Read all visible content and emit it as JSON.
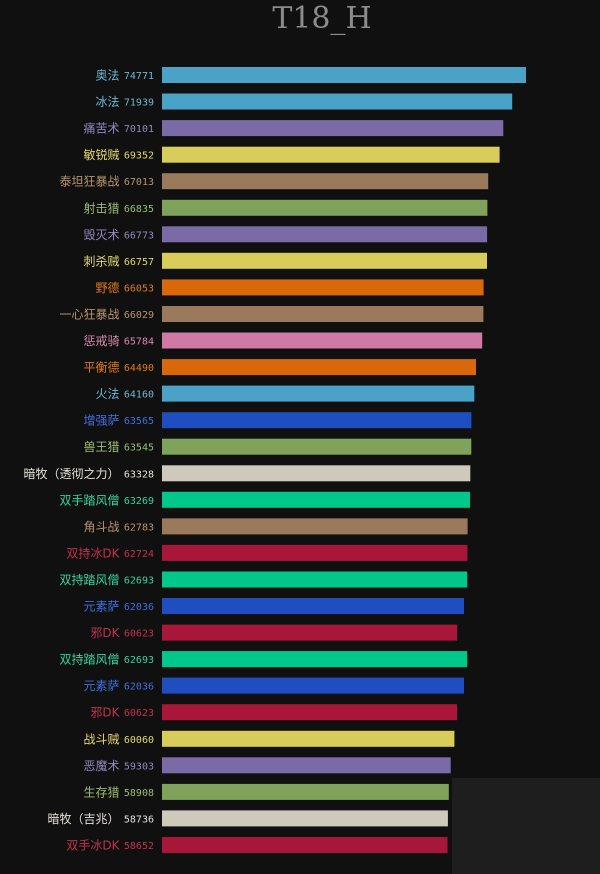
{
  "chart_data": {
    "type": "bar",
    "orientation": "horizontal",
    "title": "T18_H",
    "grid": false,
    "legend": "none",
    "x_range": [
      0,
      74771
    ],
    "rows": [
      {
        "label": "奥法",
        "value": 74771,
        "color": "#4aa3c7"
      },
      {
        "label": "冰法",
        "value": 71939,
        "color": "#4aa3c7"
      },
      {
        "label": "痛苦术",
        "value": 70101,
        "color": "#7a6aa6"
      },
      {
        "label": "敏锐贼",
        "value": 69352,
        "color": "#d8cd5a"
      },
      {
        "label": "泰坦狂暴战",
        "value": 67013,
        "color": "#9a7a5a"
      },
      {
        "label": "射击猎",
        "value": 66835,
        "color": "#7fa35a"
      },
      {
        "label": "毁灭术",
        "value": 66773,
        "color": "#7a6aa6"
      },
      {
        "label": "刺杀贼",
        "value": 66757,
        "color": "#d8cd5a"
      },
      {
        "label": "野德",
        "value": 66053,
        "color": "#d8680a"
      },
      {
        "label": "一心狂暴战",
        "value": 66029,
        "color": "#9a7a5a"
      },
      {
        "label": "惩戒骑",
        "value": 65784,
        "color": "#d07aa3"
      },
      {
        "label": "平衡德",
        "value": 64490,
        "color": "#d8680a"
      },
      {
        "label": "火法",
        "value": 64160,
        "color": "#4aa3c7"
      },
      {
        "label": "增强萨",
        "value": 63565,
        "color": "#1f4ec0"
      },
      {
        "label": "兽王猎",
        "value": 63545,
        "color": "#7fa35a"
      },
      {
        "label": "暗牧（透彻之力）",
        "value": 63328,
        "color": "#cfc9bc"
      },
      {
        "label": "双手踏风僧",
        "value": 63269,
        "color": "#00c88a"
      },
      {
        "label": "角斗战",
        "value": 62783,
        "color": "#9a7a5a"
      },
      {
        "label": "双持冰DK",
        "value": 62724,
        "color": "#a8163a"
      },
      {
        "label": "双持踏风僧",
        "value": 62693,
        "color": "#00c88a"
      },
      {
        "label": "元素萨",
        "value": 62036,
        "color": "#1f4ec0"
      },
      {
        "label": "邪DK",
        "value": 60623,
        "color": "#a8163a"
      },
      {
        "label": "双持踏风僧",
        "value": 62693,
        "color": "#00c88a"
      },
      {
        "label": "元素萨",
        "value": 62036,
        "color": "#1f4ec0"
      },
      {
        "label": "邪DK",
        "value": 60623,
        "color": "#a8163a"
      },
      {
        "label": "战斗贼",
        "value": 60060,
        "color": "#d8cd5a"
      },
      {
        "label": "恶魔术",
        "value": 59303,
        "color": "#7a6aa6"
      },
      {
        "label": "生存猎",
        "value": 58908,
        "color": "#7fa35a"
      },
      {
        "label": "暗牧（吉兆）",
        "value": 58736,
        "color": "#cfc9bc"
      },
      {
        "label": "双手冰DK",
        "value": 58652,
        "color": "#a8163a"
      }
    ],
    "label_colors": {
      "#4aa3c7": "#6fb6d6",
      "#7a6aa6": "#9487bf",
      "#d8cd5a": "#e3d870",
      "#9a7a5a": "#b8946e",
      "#7fa35a": "#9bbd72",
      "#d8680a": "#e07a1c",
      "#d07aa3": "#d98ab1",
      "#1f4ec0": "#3f6fe0",
      "#cfc9bc": "#e6e2d8",
      "#00c88a": "#33d6a0",
      "#a8163a": "#c2324f"
    }
  }
}
